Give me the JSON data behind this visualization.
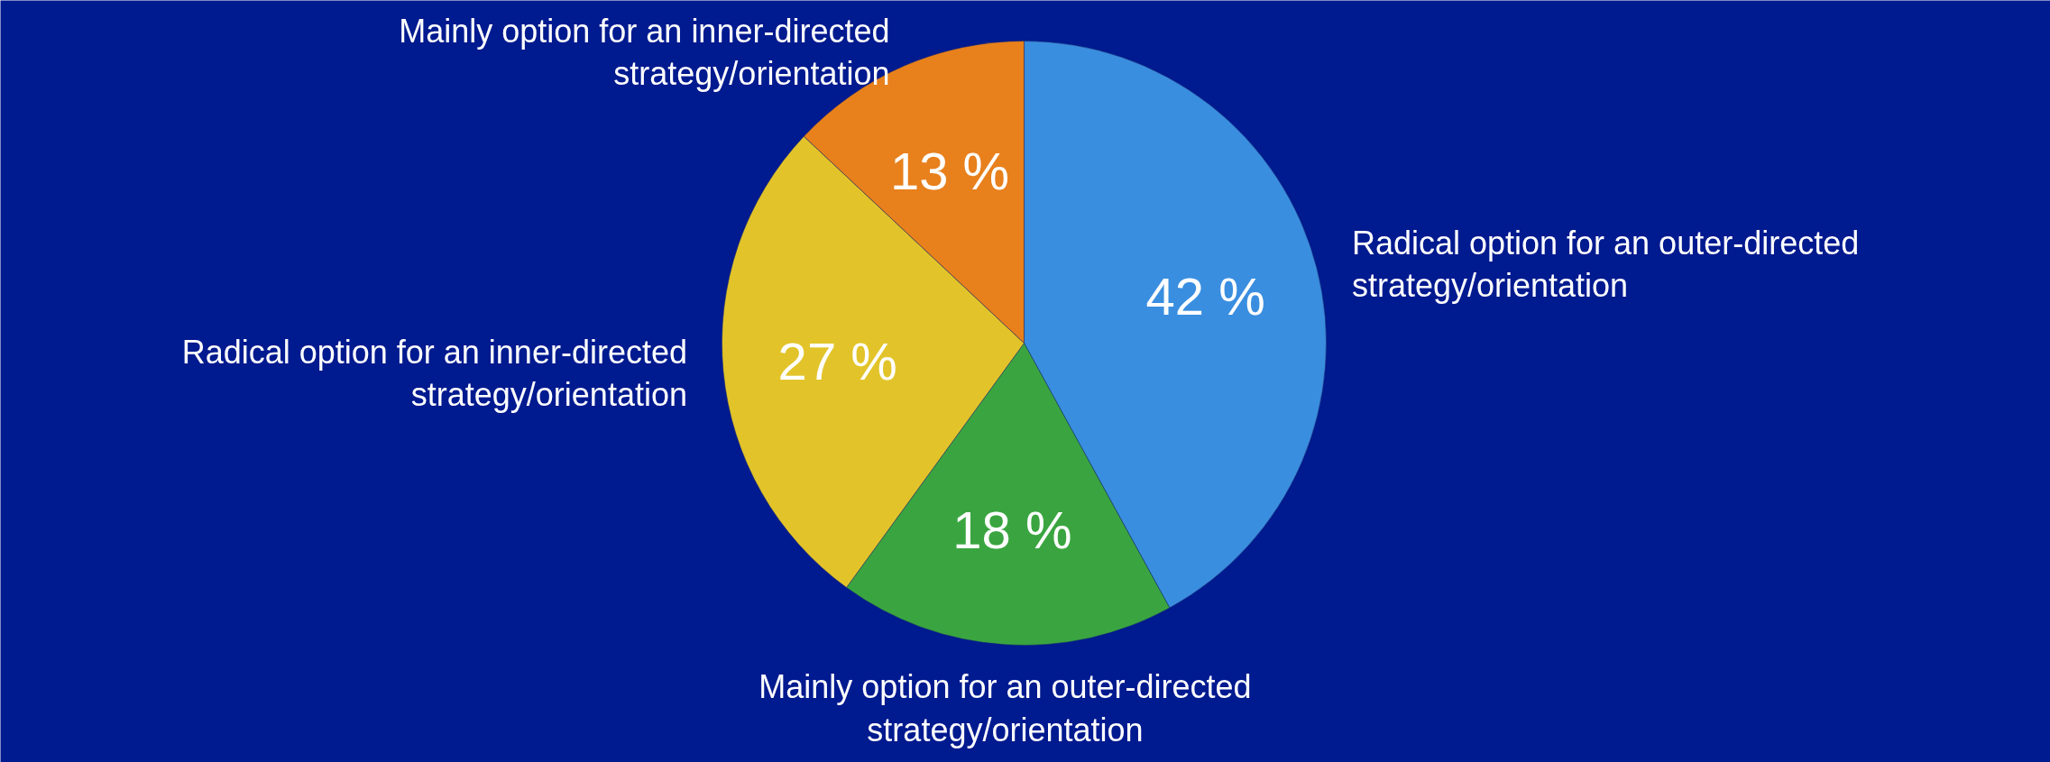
{
  "chart_data": {
    "type": "pie",
    "categories": [
      "Radical option for an outer-directed strategy/orientation",
      "Mainly option for an outer-directed strategy/orientation",
      "Radical option for an inner-directed strategy/orientation",
      "Mainly option for an inner-directed strategy/orientation"
    ],
    "values": [
      42,
      18,
      27,
      13
    ],
    "value_labels": [
      "42 %",
      "18 %",
      "27 %",
      "13 %"
    ],
    "colors": [
      "#3a8ee0",
      "#3aa540",
      "#e2c42a",
      "#e8801c"
    ]
  }
}
